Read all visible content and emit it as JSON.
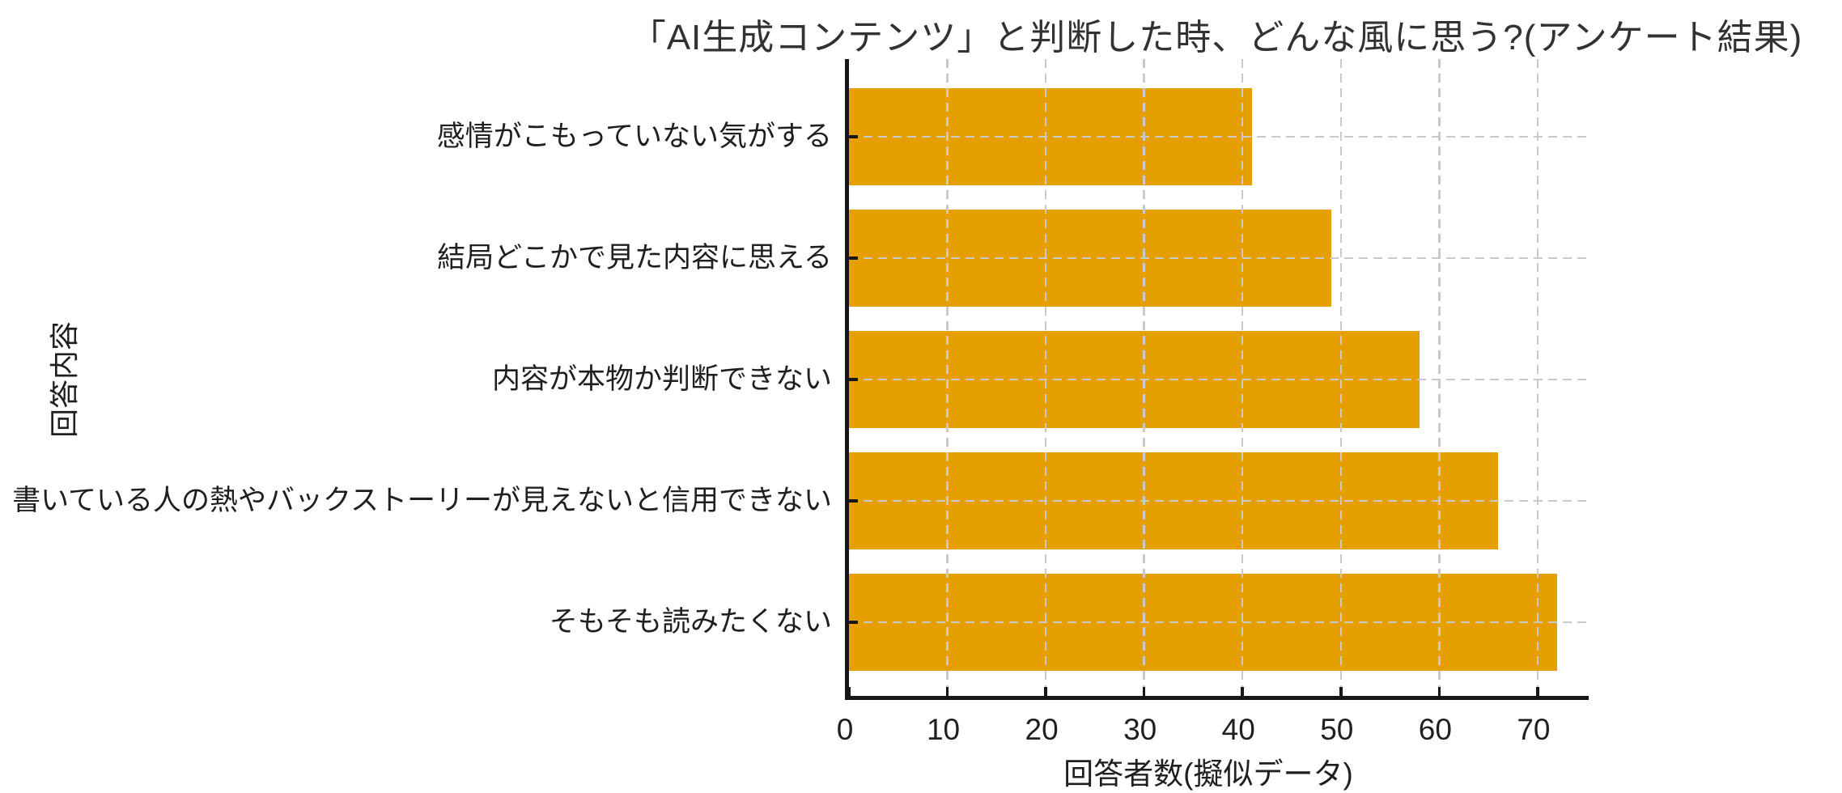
{
  "chart_data": {
    "type": "bar",
    "orientation": "horizontal",
    "title": "「AI生成コンテンツ」と判断した時、どんな風に思う?(アンケート結果)",
    "xlabel": "回答者数(擬似データ)",
    "ylabel": "回答内容",
    "categories": [
      "感情がこもっていない気がする",
      "結局どこかで見た内容に思える",
      "内容が本物か判断できない",
      "書いている人の熱やバックストーリーが見えないと信用できない",
      "そもそも読みたくない"
    ],
    "values": [
      41,
      49,
      58,
      66,
      72
    ],
    "xticks": [
      0,
      10,
      20,
      30,
      40,
      50,
      60,
      70
    ],
    "xlim": [
      0,
      75.6
    ],
    "grid": true,
    "grid_style": "dashed",
    "legend": "none",
    "bar_color": "#E69F00",
    "grid_color": "#c9c9c9",
    "axis_color": "#161616",
    "text_color": "#1f1f1f",
    "background_color": "#ffffff"
  }
}
